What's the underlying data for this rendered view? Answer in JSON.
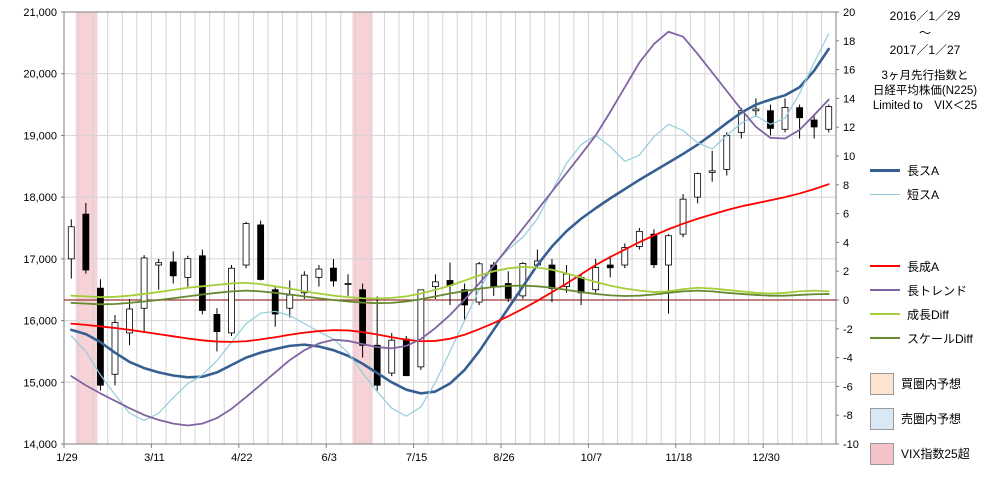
{
  "header": {
    "date_from": "2016／1／29",
    "tilde": "～",
    "date_to": "2017／1／27",
    "title_line1": "3ヶ月先行指数と",
    "title_line2": "日経平均株価(N225)",
    "subtitle": "Limited to　VIX＜25"
  },
  "legend": {
    "position": "right",
    "items": [
      {
        "label": "長スA",
        "type": "line",
        "color": "#366092",
        "weight": 3
      },
      {
        "label": "短スA",
        "type": "line",
        "color": "#92CDDC",
        "weight": 1.5
      },
      {
        "label": "長成A",
        "type": "line",
        "color": "#FF0000",
        "weight": 2
      },
      {
        "label": "長トレンド",
        "type": "line",
        "color": "#8064A2",
        "weight": 2
      },
      {
        "label": "成長Diff",
        "type": "line",
        "color": "#A5CE39",
        "weight": 2
      },
      {
        "label": "スケールDiff",
        "type": "line",
        "color": "#668A2F",
        "weight": 2
      },
      {
        "label": "買圏内予想",
        "type": "fill",
        "color": "#FCE4D0"
      },
      {
        "label": "売圏内予想",
        "type": "fill",
        "color": "#D9E8F5"
      },
      {
        "label": "VIX指数25超",
        "type": "fill",
        "color": "#F4C3C9"
      }
    ]
  },
  "chart_data": {
    "type": "candlestick+lines",
    "title": "3ヶ月先行指数と日経平均株価(N225)",
    "subtitle": "Limited to VIX＜25",
    "date_range": "2016/1/29 ～ 2017/1/27",
    "weeks": 53,
    "grid": true,
    "grid_color": "#D4D4D4",
    "border_color": "#7F7F7F",
    "zero_line_color": "#9C3838",
    "vix_band_color": "#F4C3C9",
    "left_axis": {
      "min": 14000,
      "max": 21000,
      "tick": 1000,
      "labels": [
        "14,000",
        "15,000",
        "16,000",
        "17,000",
        "18,000",
        "19,000",
        "20,000",
        "21,000"
      ]
    },
    "right_axis": {
      "min": -10,
      "max": 20,
      "tick": 2,
      "labels": [
        "-10",
        "-8",
        "-6",
        "-4",
        "-2",
        "0",
        "2",
        "4",
        "6",
        "8",
        "10",
        "12",
        "14",
        "16",
        "18",
        "20"
      ]
    },
    "x_tick_labels": [
      "1/29",
      "3/11",
      "4/22",
      "6/3",
      "7/15",
      "8/26",
      "10/7",
      "11/18",
      "12/30"
    ],
    "x_label_every": 6,
    "vix_bands": [
      {
        "from": 0.3,
        "to": 1.8
      },
      {
        "from": 19.3,
        "to": 20.7
      }
    ],
    "candles": {
      "name": "N225",
      "up_color": "#FFFFFF",
      "down_color": "#000000",
      "ohlc": [
        [
          17000,
          17640,
          16680,
          17520
        ],
        [
          17725,
          17905,
          16760,
          16820
        ],
        [
          16525,
          16670,
          14865,
          14953
        ],
        [
          15130,
          16090,
          14950,
          15967
        ],
        [
          15800,
          16350,
          15600,
          16188
        ],
        [
          16200,
          17060,
          15800,
          17015
        ],
        [
          16900,
          17000,
          16500,
          16938
        ],
        [
          16950,
          17120,
          16600,
          16725
        ],
        [
          16700,
          17050,
          16550,
          17003
        ],
        [
          17050,
          17150,
          16100,
          16164
        ],
        [
          16100,
          16200,
          15500,
          15822
        ],
        [
          15800,
          16900,
          15750,
          16848
        ],
        [
          16900,
          17600,
          16850,
          17572
        ],
        [
          17550,
          17620,
          16650,
          16666
        ],
        [
          16500,
          16550,
          15900,
          16107
        ],
        [
          16200,
          16650,
          16050,
          16412
        ],
        [
          16450,
          16800,
          16350,
          16736
        ],
        [
          16700,
          16900,
          16550,
          16835
        ],
        [
          16850,
          17000,
          16550,
          16642
        ],
        [
          16600,
          16750,
          16400,
          16601
        ],
        [
          16500,
          16600,
          15400,
          15599
        ],
        [
          15600,
          16390,
          14865,
          14952
        ],
        [
          15150,
          15800,
          15100,
          15682
        ],
        [
          15700,
          15750,
          15100,
          15107
        ],
        [
          15250,
          16500,
          15200,
          16498
        ],
        [
          16550,
          16750,
          16350,
          16627
        ],
        [
          16650,
          16940,
          16250,
          16569
        ],
        [
          16500,
          16600,
          16000,
          16254
        ],
        [
          16300,
          16950,
          16250,
          16920
        ],
        [
          16900,
          16950,
          16400,
          16546
        ],
        [
          16600,
          16800,
          16300,
          16361
        ],
        [
          16400,
          16950,
          16350,
          16926
        ],
        [
          16900,
          17150,
          16850,
          16966
        ],
        [
          16900,
          17000,
          16300,
          16519
        ],
        [
          16550,
          16900,
          16450,
          16754
        ],
        [
          16700,
          16750,
          16250,
          16450
        ],
        [
          16500,
          17000,
          16450,
          16860
        ],
        [
          16900,
          17050,
          16700,
          16856
        ],
        [
          16900,
          17250,
          16850,
          17185
        ],
        [
          17200,
          17500,
          17150,
          17446
        ],
        [
          17400,
          17480,
          16850,
          16905
        ],
        [
          16900,
          17400,
          16112,
          17375
        ],
        [
          17400,
          18050,
          17350,
          17967
        ],
        [
          18000,
          18400,
          17900,
          18381
        ],
        [
          18400,
          18750,
          18250,
          18426
        ],
        [
          18450,
          19050,
          18350,
          18996
        ],
        [
          19050,
          19450,
          18950,
          19401
        ],
        [
          19400,
          19600,
          19300,
          19428
        ],
        [
          19400,
          19500,
          19000,
          19114
        ],
        [
          19100,
          19600,
          19050,
          19454
        ],
        [
          19450,
          19500,
          18950,
          19287
        ],
        [
          19250,
          19350,
          18950,
          19137
        ],
        [
          19100,
          19500,
          19050,
          19467
        ]
      ]
    },
    "series": [
      {
        "name": "長スA",
        "axis": "left",
        "color": "#366092",
        "width": 2.6,
        "values": [
          15850,
          15780,
          15650,
          15480,
          15330,
          15230,
          15160,
          15110,
          15080,
          15090,
          15160,
          15280,
          15400,
          15480,
          15540,
          15590,
          15610,
          15580,
          15520,
          15430,
          15300,
          15150,
          15000,
          14880,
          14820,
          14850,
          14980,
          15200,
          15500,
          15850,
          16200,
          16550,
          16900,
          17200,
          17450,
          17650,
          17820,
          17980,
          18130,
          18280,
          18420,
          18560,
          18700,
          18850,
          19020,
          19200,
          19370,
          19500,
          19580,
          19650,
          19780,
          20050,
          20400
        ]
      },
      {
        "name": "短スA",
        "axis": "left",
        "color": "#92CDDC",
        "width": 1.2,
        "values": [
          15750,
          15500,
          15120,
          14800,
          14500,
          14380,
          14500,
          14750,
          14980,
          15120,
          15350,
          15650,
          15950,
          16120,
          16150,
          16080,
          15950,
          15820,
          15700,
          15480,
          15150,
          14850,
          14580,
          14450,
          14600,
          15000,
          15500,
          16000,
          16500,
          16900,
          17150,
          17350,
          17650,
          18100,
          18550,
          18850,
          19000,
          18820,
          18580,
          18680,
          18980,
          19180,
          19080,
          18880,
          18780,
          19000,
          19200,
          19320,
          19180,
          19280,
          19680,
          20180,
          20650
        ]
      },
      {
        "name": "長成A",
        "axis": "left",
        "color": "#FF0000",
        "width": 1.8,
        "values": [
          15950,
          15930,
          15905,
          15880,
          15850,
          15815,
          15780,
          15745,
          15710,
          15680,
          15660,
          15655,
          15665,
          15695,
          15730,
          15770,
          15805,
          15830,
          15845,
          15840,
          15815,
          15775,
          15730,
          15690,
          15665,
          15670,
          15705,
          15770,
          15860,
          15960,
          16070,
          16190,
          16320,
          16460,
          16600,
          16750,
          16900,
          17030,
          17150,
          17270,
          17380,
          17480,
          17570,
          17650,
          17720,
          17790,
          17850,
          17900,
          17950,
          18000,
          18060,
          18130,
          18210
        ]
      },
      {
        "name": "長トレンド",
        "axis": "left",
        "color": "#8064A2",
        "width": 1.8,
        "values": [
          15100,
          14950,
          14820,
          14700,
          14580,
          14470,
          14390,
          14330,
          14300,
          14330,
          14420,
          14570,
          14760,
          14960,
          15160,
          15360,
          15520,
          15630,
          15690,
          15670,
          15620,
          15570,
          15550,
          15590,
          15700,
          15880,
          16090,
          16340,
          16600,
          16890,
          17190,
          17490,
          17790,
          18090,
          18390,
          18690,
          19000,
          19380,
          19780,
          20180,
          20480,
          20680,
          20600,
          20320,
          20020,
          19720,
          19420,
          19140,
          18960,
          18950,
          19090,
          19330,
          19580
        ]
      },
      {
        "name": "成長Diff",
        "axis": "right",
        "color": "#A5CE39",
        "width": 1.8,
        "values": [
          0.3,
          0.25,
          0.2,
          0.22,
          0.3,
          0.42,
          0.55,
          0.7,
          0.85,
          0.95,
          1.05,
          1.15,
          1.2,
          1.1,
          0.95,
          0.8,
          0.6,
          0.45,
          0.3,
          0.2,
          0.12,
          0.1,
          0.15,
          0.25,
          0.45,
          0.7,
          1.0,
          1.35,
          1.7,
          2.0,
          2.2,
          2.3,
          2.25,
          2.1,
          1.85,
          1.55,
          1.25,
          1.0,
          0.8,
          0.65,
          0.55,
          0.6,
          0.75,
          0.85,
          0.8,
          0.7,
          0.6,
          0.5,
          0.45,
          0.5,
          0.6,
          0.65,
          0.6
        ]
      },
      {
        "name": "スケールDiff",
        "axis": "right",
        "color": "#668A2F",
        "width": 1.8,
        "values": [
          -0.2,
          -0.25,
          -0.3,
          -0.28,
          -0.2,
          -0.1,
          0.0,
          0.12,
          0.25,
          0.38,
          0.5,
          0.6,
          0.65,
          0.6,
          0.5,
          0.38,
          0.25,
          0.12,
          0.0,
          -0.1,
          -0.18,
          -0.22,
          -0.2,
          -0.1,
          0.05,
          0.25,
          0.45,
          0.62,
          0.78,
          0.9,
          0.98,
          1.0,
          0.95,
          0.85,
          0.7,
          0.55,
          0.42,
          0.32,
          0.28,
          0.3,
          0.38,
          0.5,
          0.6,
          0.65,
          0.6,
          0.5,
          0.42,
          0.35,
          0.3,
          0.3,
          0.35,
          0.4,
          0.42
        ]
      }
    ]
  }
}
